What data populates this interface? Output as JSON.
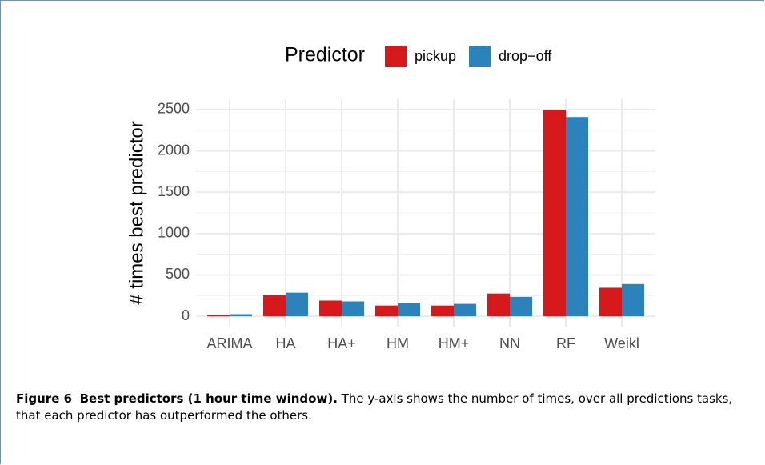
{
  "chart_data": {
    "type": "bar",
    "legend_title": "Predictor",
    "ylabel": "# times best predictor",
    "categories": [
      "ARIMA",
      "HA",
      "HA+",
      "HM",
      "HM+",
      "NN",
      "RF",
      "Weikl"
    ],
    "series": [
      {
        "name": "pickup",
        "color": "#d7191c",
        "values": [
          15,
          255,
          190,
          130,
          130,
          275,
          2490,
          345
        ]
      },
      {
        "name": "drop−off",
        "color": "#2c83bb",
        "values": [
          25,
          285,
          180,
          160,
          150,
          235,
          2410,
          390
        ]
      }
    ],
    "ylim": [
      -125,
      2625
    ],
    "yticks": [
      0,
      500,
      1000,
      1500,
      2000,
      2500
    ],
    "minor_yticks": [
      250,
      750,
      1250,
      1750,
      2250
    ],
    "grid": true,
    "legend": "top"
  },
  "caption": {
    "label": "Figure 6",
    "title": "Best predictors (1 hour time window).",
    "text": "The y-axis shows the number of times, over all predictions tasks, that each predictor has outperformed the others."
  }
}
